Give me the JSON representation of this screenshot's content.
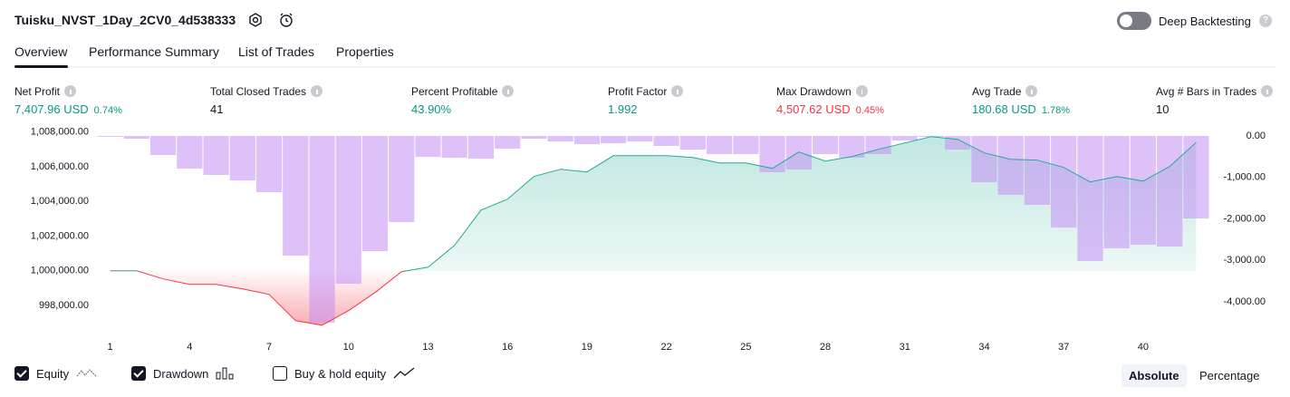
{
  "header": {
    "title": "Tuisku_NVST_1Day_2CV0_4d538333",
    "deep_backtesting": "Deep Backtesting"
  },
  "tabs": [
    "Overview",
    "Performance Summary",
    "List of Trades",
    "Properties"
  ],
  "metrics": [
    {
      "label": "Net Profit",
      "value": "7,407.96 USD",
      "extra": "0.74%"
    },
    {
      "label": "Total Closed Trades",
      "value": "41"
    },
    {
      "label": "Percent Profitable",
      "value": "43.90%"
    },
    {
      "label": "Profit Factor",
      "value": "1.992"
    },
    {
      "label": "Max Drawdown",
      "value": "4,507.62 USD",
      "extra": "0.45%"
    },
    {
      "label": "Avg Trade",
      "value": "180.68 USD",
      "extra": "1.78%"
    },
    {
      "label": "Avg # Bars in Trades",
      "value": "10"
    }
  ],
  "chart_data": {
    "type": "combo",
    "x": [
      1,
      2,
      3,
      4,
      5,
      6,
      7,
      8,
      9,
      10,
      11,
      12,
      13,
      14,
      15,
      16,
      17,
      18,
      19,
      20,
      21,
      22,
      23,
      24,
      25,
      26,
      27,
      28,
      29,
      30,
      31,
      32,
      33,
      34,
      35,
      36,
      37,
      38,
      39,
      40,
      41,
      42
    ],
    "xlim": [
      0.5,
      42.5
    ],
    "xticks": [
      1,
      4,
      7,
      10,
      13,
      16,
      19,
      22,
      25,
      28,
      31,
      34,
      37,
      40
    ],
    "ylim": [
      996500,
      1008300
    ],
    "yticks": [
      {
        "value": 998000,
        "label": "998,000.00"
      },
      {
        "value": 1000000,
        "label": "1,000,000.00"
      },
      {
        "value": 1002000,
        "label": "1,002,000.00"
      },
      {
        "value": 1004000,
        "label": "1,004,000.00"
      },
      {
        "value": 1006000,
        "label": "1,006,000.00"
      },
      {
        "value": 1008000,
        "label": "1,008,000.00"
      }
    ],
    "y2lim": [
      -4715,
      219
    ],
    "y2ticks": [
      {
        "value": 0,
        "label": "0.00"
      },
      {
        "value": -1000,
        "label": "-1,000.00"
      },
      {
        "value": -2000,
        "label": "-2,000.00"
      },
      {
        "value": -3000,
        "label": "-3,000.00"
      },
      {
        "value": -4000,
        "label": "-4,000.00"
      }
    ],
    "series": [
      {
        "name": "Equity",
        "type": "line",
        "color": "#22ab94",
        "negative_color": "#f23645",
        "values": [
          1000000,
          1000000,
          999530,
          999216,
          999216,
          998954,
          998640,
          997124,
          996863,
          997700,
          998745,
          999948,
          1000209,
          1001464,
          1003503,
          1004131,
          1005438,
          1005856,
          1005700,
          1006640,
          1006640,
          1006640,
          1006536,
          1006222,
          1006222,
          1005908,
          1006850,
          1006327,
          1006588,
          1007006,
          1007373,
          1007739,
          1007582,
          1006797,
          1006431,
          1006379,
          1005961,
          1005124,
          1005438,
          1005176,
          1006013,
          1007408
        ]
      },
      {
        "name": "Drawdown",
        "type": "bar",
        "axis": "y2",
        "color": "#c58ef5",
        "values": [
          -20,
          -66,
          -460,
          -787,
          -940,
          -1071,
          -1355,
          -2885,
          -4508,
          -3563,
          -2776,
          -2077,
          -503,
          -525,
          -546,
          -306,
          -66,
          -131,
          -197,
          -175,
          -131,
          -240,
          -328,
          -437,
          -437,
          -874,
          -809,
          -437,
          -525,
          -437,
          -109,
          -22,
          -328,
          -1115,
          -1421,
          -1661,
          -2208,
          -3016,
          -2710,
          -2623,
          -2667,
          -1989
        ]
      }
    ]
  },
  "buy_hold": {
    "label": "Buy & hold equity",
    "checked": false
  },
  "modes": [
    "Absolute",
    "Percentage"
  ]
}
